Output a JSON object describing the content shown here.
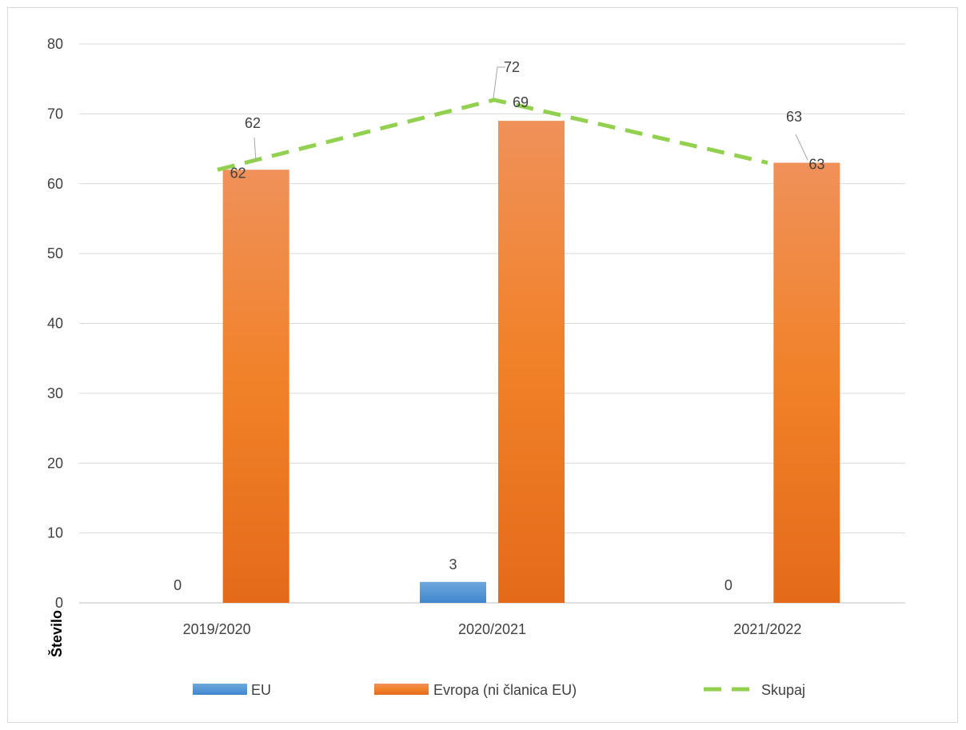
{
  "chart_data": {
    "type": "bar",
    "categories": [
      "2019/2020",
      "2020/2021",
      "2021/2022"
    ],
    "series": [
      {
        "name": "EU",
        "kind": "bar",
        "values": [
          0,
          3,
          0
        ],
        "color": "#5b9bd5"
      },
      {
        "name": "Evropa (ni članica EU)",
        "kind": "bar",
        "values": [
          62,
          69,
          63
        ],
        "color": "#ed7d31"
      },
      {
        "name": "Skupaj",
        "kind": "line",
        "style": "dashed",
        "values": [
          62,
          72,
          63
        ],
        "color": "#92d050"
      }
    ],
    "ylim": [
      0,
      80
    ],
    "yticks": [
      0,
      10,
      20,
      30,
      40,
      50,
      60,
      70,
      80
    ],
    "ylabel": "Število",
    "xlabel": "",
    "title": "",
    "grid": true,
    "legend": "bottom"
  }
}
